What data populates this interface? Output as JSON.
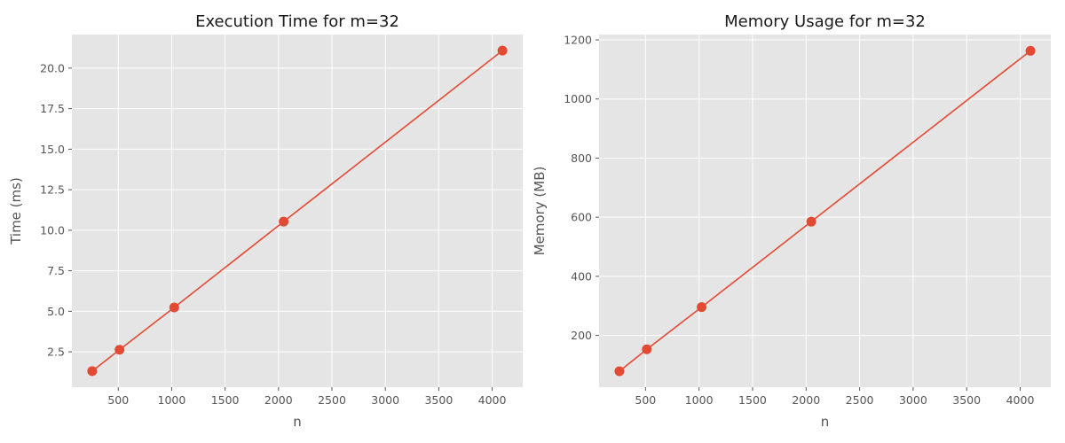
{
  "chart_data": [
    {
      "type": "line",
      "title": "Execution Time for m=32",
      "xlabel": "n",
      "ylabel": "Time (ms)",
      "x": [
        256,
        512,
        1024,
        2048,
        4096
      ],
      "series": [
        {
          "values": [
            1.31,
            2.63,
            5.24,
            10.53,
            21.08
          ]
        }
      ],
      "xlim": [
        66,
        4286
      ],
      "ylim": [
        0.32,
        22.07
      ],
      "xticks": [
        500,
        1000,
        1500,
        2000,
        2500,
        3000,
        3500,
        4000
      ],
      "xtick_labels": [
        "500",
        "1000",
        "1500",
        "2000",
        "2500",
        "3000",
        "3500",
        "4000"
      ],
      "yticks": [
        2.5,
        5.0,
        7.5,
        10.0,
        12.5,
        15.0,
        17.5,
        20.0
      ],
      "ytick_labels": [
        "2.5",
        "5.0",
        "7.5",
        "10.0",
        "12.5",
        "15.0",
        "17.5",
        "20.0"
      ],
      "grid": true,
      "color": "#e24a33",
      "background": "#e5e5e5"
    },
    {
      "type": "line",
      "title": "Memory Usage for m=32",
      "xlabel": "n",
      "ylabel": "Memory (MB)",
      "x": [
        256,
        512,
        1024,
        2048,
        4096
      ],
      "series": [
        {
          "values": [
            79,
            153,
            296,
            585,
            1163
          ]
        }
      ],
      "xlim": [
        66,
        4286
      ],
      "ylim": [
        25,
        1218
      ],
      "xticks": [
        500,
        1000,
        1500,
        2000,
        2500,
        3000,
        3500,
        4000
      ],
      "xtick_labels": [
        "500",
        "1000",
        "1500",
        "2000",
        "2500",
        "3000",
        "3500",
        "4000"
      ],
      "yticks": [
        200,
        400,
        600,
        800,
        1000,
        1200
      ],
      "ytick_labels": [
        "200",
        "400",
        "600",
        "800",
        "1000",
        "1200"
      ],
      "grid": true,
      "color": "#e24a33",
      "background": "#e5e5e5"
    }
  ]
}
